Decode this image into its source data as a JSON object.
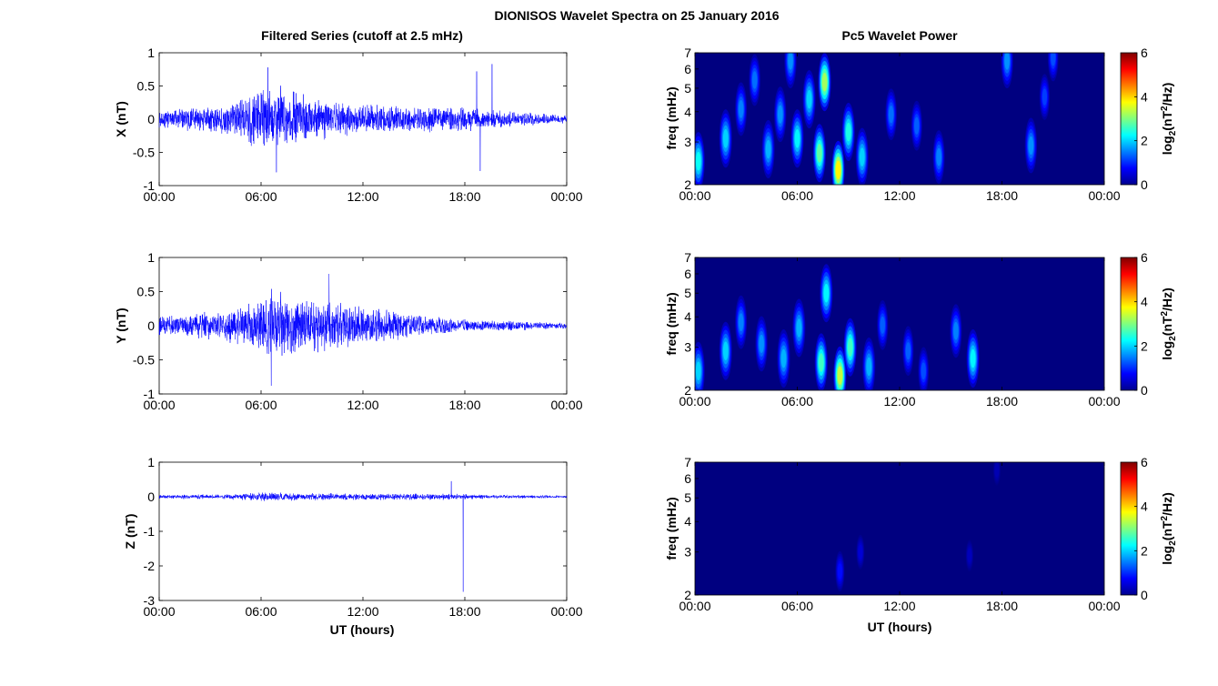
{
  "figure": {
    "title": "DIONISOS Wavelet Spectra on 25 January 2016",
    "left_title": "Filtered Series (cutoff at 2.5 mHz)",
    "right_title": "Pc5 Wavelet Power",
    "xlabel": "UT (hours)"
  },
  "colors": {
    "trace": "#0000ff",
    "background_power": "#00008f"
  },
  "chart_data": [
    {
      "type": "line",
      "component": "X",
      "ylabel": "X (nT)",
      "x_ticks": [
        "00:00",
        "06:00",
        "12:00",
        "18:00",
        "00:00"
      ],
      "x_range_hours": [
        0,
        24
      ],
      "ylim": [
        -1,
        1
      ],
      "y_ticks": [
        "1",
        "0.5",
        "0",
        "-0.5",
        "-1"
      ],
      "amplitude_envelope_nT": [
        [
          0,
          0.15
        ],
        [
          2,
          0.2
        ],
        [
          4,
          0.25
        ],
        [
          5.5,
          0.45
        ],
        [
          6.5,
          0.6
        ],
        [
          7.5,
          0.5
        ],
        [
          9,
          0.35
        ],
        [
          12,
          0.25
        ],
        [
          15,
          0.2
        ],
        [
          18,
          0.2
        ],
        [
          21,
          0.12
        ],
        [
          24,
          0.06
        ]
      ],
      "spikes": [
        {
          "x_hours": 6.4,
          "y": 0.78
        },
        {
          "x_hours": 6.9,
          "y": -0.8
        },
        {
          "x_hours": 18.7,
          "y": 0.72
        },
        {
          "x_hours": 18.9,
          "y": -0.78
        },
        {
          "x_hours": 19.6,
          "y": 0.83
        }
      ]
    },
    {
      "type": "line",
      "component": "Y",
      "ylabel": "Y (nT)",
      "x_ticks": [
        "00:00",
        "06:00",
        "12:00",
        "18:00",
        "00:00"
      ],
      "x_range_hours": [
        0,
        24
      ],
      "ylim": [
        -1,
        1
      ],
      "y_ticks": [
        "1",
        "0.5",
        "0",
        "-0.5",
        "-1"
      ],
      "amplitude_envelope_nT": [
        [
          0,
          0.15
        ],
        [
          2,
          0.2
        ],
        [
          4,
          0.25
        ],
        [
          5.5,
          0.4
        ],
        [
          6.5,
          0.6
        ],
        [
          8,
          0.45
        ],
        [
          10,
          0.4
        ],
        [
          12,
          0.3
        ],
        [
          15,
          0.2
        ],
        [
          18,
          0.1
        ],
        [
          21,
          0.07
        ],
        [
          24,
          0.05
        ]
      ],
      "spikes": [
        {
          "x_hours": 6.6,
          "y": -0.88
        },
        {
          "x_hours": 10,
          "y": 0.76
        }
      ]
    },
    {
      "type": "line",
      "component": "Z",
      "ylabel": "Z (nT)",
      "x_ticks": [
        "00:00",
        "06:00",
        "12:00",
        "18:00",
        "00:00"
      ],
      "x_range_hours": [
        0,
        24
      ],
      "ylim": [
        -3,
        1
      ],
      "y_ticks": [
        "1",
        "0",
        "-1",
        "-2",
        "-3"
      ],
      "amplitude_envelope_nT": [
        [
          0,
          0.06
        ],
        [
          4,
          0.08
        ],
        [
          6.5,
          0.14
        ],
        [
          8,
          0.12
        ],
        [
          12,
          0.1
        ],
        [
          17,
          0.1
        ],
        [
          20,
          0.06
        ],
        [
          24,
          0.04
        ]
      ],
      "spikes": [
        {
          "x_hours": 17.2,
          "y": 0.45
        },
        {
          "x_hours": 17.9,
          "y": -2.75
        }
      ]
    },
    {
      "type": "heatmap",
      "component": "X",
      "title": "Pc5 Wavelet Power",
      "ylabel": "freq (mHz)",
      "y_scale": "log",
      "ylim": [
        2,
        7
      ],
      "y_ticks": [
        "7",
        "6",
        "5",
        "4",
        "3",
        "2"
      ],
      "x_ticks": [
        "00:00",
        "06:00",
        "12:00",
        "18:00",
        "00:00"
      ],
      "x_range_hours": [
        0,
        24
      ],
      "colorbar": {
        "label": "log2(nT2/Hz)",
        "range": [
          0,
          6
        ],
        "ticks": [
          "6",
          "4",
          "2",
          "0"
        ]
      },
      "blobs": [
        {
          "t": 0.2,
          "f": 2.5,
          "p": 2.3
        },
        {
          "t": 1.8,
          "f": 3.1,
          "p": 2.0
        },
        {
          "t": 2.7,
          "f": 4.1,
          "p": 1.5
        },
        {
          "t": 3.5,
          "f": 5.4,
          "p": 1.4
        },
        {
          "t": 4.3,
          "f": 2.8,
          "p": 1.8
        },
        {
          "t": 5.0,
          "f": 3.9,
          "p": 1.6
        },
        {
          "t": 5.6,
          "f": 6.5,
          "p": 1.6
        },
        {
          "t": 6.0,
          "f": 3.1,
          "p": 2.2
        },
        {
          "t": 6.7,
          "f": 4.5,
          "p": 2.0
        },
        {
          "t": 7.3,
          "f": 2.7,
          "p": 2.8
        },
        {
          "t": 7.6,
          "f": 5.3,
          "p": 3.2
        },
        {
          "t": 8.4,
          "f": 2.3,
          "p": 3.8
        },
        {
          "t": 9.0,
          "f": 3.3,
          "p": 2.4
        },
        {
          "t": 9.8,
          "f": 2.6,
          "p": 2.0
        },
        {
          "t": 11.5,
          "f": 3.9,
          "p": 1.4
        },
        {
          "t": 13.0,
          "f": 3.5,
          "p": 1.3
        },
        {
          "t": 14.3,
          "f": 2.6,
          "p": 1.5
        },
        {
          "t": 18.3,
          "f": 6.5,
          "p": 1.6
        },
        {
          "t": 19.7,
          "f": 2.9,
          "p": 1.6
        },
        {
          "t": 20.5,
          "f": 4.6,
          "p": 1.1
        },
        {
          "t": 21.0,
          "f": 6.7,
          "p": 1.2
        }
      ]
    },
    {
      "type": "heatmap",
      "component": "Y",
      "title": "",
      "ylabel": "freq (mHz)",
      "y_scale": "log",
      "ylim": [
        2,
        7
      ],
      "y_ticks": [
        "7",
        "6",
        "5",
        "4",
        "3",
        "2"
      ],
      "x_ticks": [
        "00:00",
        "06:00",
        "12:00",
        "18:00",
        "00:00"
      ],
      "x_range_hours": [
        0,
        24
      ],
      "colorbar": {
        "label": "log2(nT2/Hz)",
        "range": [
          0,
          6
        ],
        "ticks": [
          "6",
          "4",
          "2",
          "0"
        ]
      },
      "blobs": [
        {
          "t": 0.2,
          "f": 2.4,
          "p": 2.0
        },
        {
          "t": 1.8,
          "f": 2.9,
          "p": 2.0
        },
        {
          "t": 2.7,
          "f": 3.8,
          "p": 1.5
        },
        {
          "t": 3.9,
          "f": 3.1,
          "p": 1.6
        },
        {
          "t": 5.2,
          "f": 2.7,
          "p": 1.8
        },
        {
          "t": 6.1,
          "f": 3.6,
          "p": 1.8
        },
        {
          "t": 7.4,
          "f": 2.6,
          "p": 2.6
        },
        {
          "t": 7.7,
          "f": 5.0,
          "p": 2.2
        },
        {
          "t": 8.5,
          "f": 2.3,
          "p": 3.4
        },
        {
          "t": 9.1,
          "f": 3.0,
          "p": 2.6
        },
        {
          "t": 10.2,
          "f": 2.5,
          "p": 1.8
        },
        {
          "t": 11.0,
          "f": 3.7,
          "p": 1.3
        },
        {
          "t": 12.5,
          "f": 2.9,
          "p": 1.3
        },
        {
          "t": 13.4,
          "f": 2.4,
          "p": 1.2
        },
        {
          "t": 15.3,
          "f": 3.5,
          "p": 1.5
        },
        {
          "t": 16.3,
          "f": 2.7,
          "p": 2.2
        }
      ]
    },
    {
      "type": "heatmap",
      "component": "Z",
      "title": "",
      "ylabel": "freq (mHz)",
      "y_scale": "log",
      "ylim": [
        2,
        7
      ],
      "y_ticks": [
        "7",
        "6",
        "5",
        "4",
        "3",
        "2"
      ],
      "x_ticks": [
        "00:00",
        "06:00",
        "12:00",
        "18:00",
        "00:00"
      ],
      "x_range_hours": [
        0,
        24
      ],
      "colorbar": {
        "label": "log2(nT2/Hz)",
        "range": [
          0,
          6
        ],
        "ticks": [
          "6",
          "4",
          "2",
          "0"
        ]
      },
      "blobs": [
        {
          "t": 8.5,
          "f": 2.5,
          "p": 0.8
        },
        {
          "t": 9.7,
          "f": 3.0,
          "p": 0.5
        },
        {
          "t": 16.1,
          "f": 2.9,
          "p": 0.35
        },
        {
          "t": 17.7,
          "f": 6.5,
          "p": 0.3
        }
      ]
    }
  ]
}
